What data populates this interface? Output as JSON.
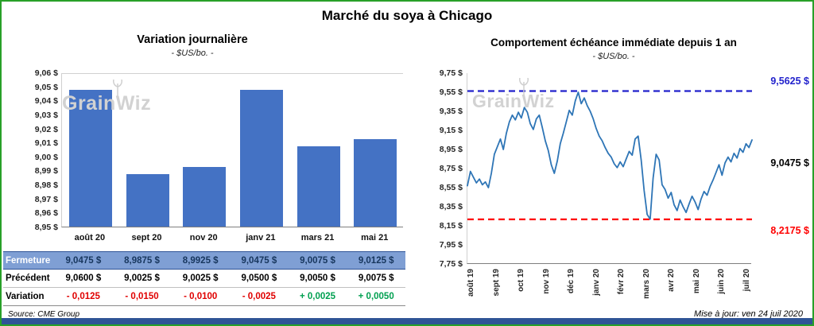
{
  "page_title": "Marché du soya à Chicago",
  "watermark": "GrainWiz",
  "footer": {
    "source": "Source: CME Group",
    "updated": "Mise à jour: ven 24 juil 2020"
  },
  "colors": {
    "frame_border": "#28A028",
    "bottom_bar": "#2F5496",
    "bar_fill": "#4472C4",
    "line_stroke": "#2E75B6",
    "high_ref": "#2222CC",
    "low_ref": "#FF0000",
    "negative": "#E00000",
    "positive": "#00A050",
    "close_row_bg": "#7F9FD4",
    "close_row_text": "#17365D"
  },
  "chart_data": [
    {
      "type": "bar",
      "title": "Variation  journalière",
      "subtitle": "- $US/bo. -",
      "categories": [
        "août 20",
        "sept 20",
        "nov 20",
        "janv 21",
        "mars 21",
        "mai 21"
      ],
      "values": [
        9.0475,
        8.9875,
        8.9925,
        9.0475,
        9.0075,
        9.0125
      ],
      "ylim": [
        8.95,
        9.06
      ],
      "ytick_labels": [
        "9,06 $",
        "9,05 $",
        "9,04 $",
        "9,03 $",
        "9,02 $",
        "9,01 $",
        "9,00 $",
        "8,99 $",
        "8,98 $",
        "8,97 $",
        "8,96 $",
        "8,95 $"
      ],
      "grid": false,
      "legend": false
    },
    {
      "type": "line",
      "title": "Comportement échéance immédiate depuis 1 an",
      "subtitle": "- $US/bo. -",
      "x_labels": [
        "août 19",
        "sept 19",
        "oct 19",
        "nov 19",
        "déc 19",
        "janv 20",
        "févr 20",
        "mars 20",
        "avr 20",
        "mai 20",
        "juin 20",
        "juil 20"
      ],
      "ylim": [
        7.75,
        9.75
      ],
      "ytick_labels": [
        "9,75 $",
        "9,55 $",
        "9,35 $",
        "9,15 $",
        "8,95 $",
        "8,75 $",
        "8,55 $",
        "8,35 $",
        "8,15 $",
        "7,95 $",
        "7,75 $"
      ],
      "high_ref": {
        "value": 9.5625,
        "label": "9,5625 $"
      },
      "low_ref": {
        "value": 8.2175,
        "label": "8,2175 $"
      },
      "last_value": {
        "value": 9.0475,
        "label": "9,0475 $"
      },
      "values": [
        8.57,
        8.72,
        8.66,
        8.6,
        8.64,
        8.58,
        8.61,
        8.55,
        8.7,
        8.9,
        8.98,
        9.06,
        8.95,
        9.12,
        9.24,
        9.31,
        9.26,
        9.34,
        9.28,
        9.39,
        9.34,
        9.22,
        9.16,
        9.27,
        9.31,
        9.18,
        9.04,
        8.94,
        8.79,
        8.7,
        8.83,
        9.01,
        9.12,
        9.24,
        9.36,
        9.31,
        9.46,
        9.55,
        9.43,
        9.49,
        9.41,
        9.35,
        9.27,
        9.17,
        9.09,
        9.04,
        8.97,
        8.91,
        8.87,
        8.8,
        8.76,
        8.82,
        8.77,
        8.85,
        8.93,
        8.89,
        9.06,
        9.09,
        8.84,
        8.52,
        8.27,
        8.22,
        8.65,
        8.9,
        8.84,
        8.58,
        8.53,
        8.44,
        8.5,
        8.37,
        8.31,
        8.42,
        8.35,
        8.29,
        8.38,
        8.46,
        8.4,
        8.32,
        8.43,
        8.51,
        8.47,
        8.56,
        8.63,
        8.71,
        8.79,
        8.68,
        8.81,
        8.87,
        8.82,
        8.91,
        8.86,
        8.96,
        8.92,
        9.01,
        8.97,
        9.05
      ],
      "grid": false,
      "legend": false
    }
  ],
  "table": {
    "rows": [
      {
        "label": "Fermeture",
        "style": "close",
        "values": [
          "9,0475 $",
          "8,9875 $",
          "8,9925 $",
          "9,0475 $",
          "9,0075 $",
          "9,0125 $"
        ]
      },
      {
        "label": "Précédent",
        "style": "previous",
        "values": [
          "9,0600 $",
          "9,0025 $",
          "9,0025 $",
          "9,0500 $",
          "9,0050 $",
          "9,0075 $"
        ]
      },
      {
        "label": "Variation",
        "style": "variation",
        "values": [
          "- 0,0125",
          "- 0,0150",
          "- 0,0100",
          "- 0,0025",
          "+ 0,0025",
          "+ 0,0050"
        ],
        "signs": [
          "neg",
          "neg",
          "neg",
          "neg",
          "pos",
          "pos"
        ]
      }
    ]
  }
}
